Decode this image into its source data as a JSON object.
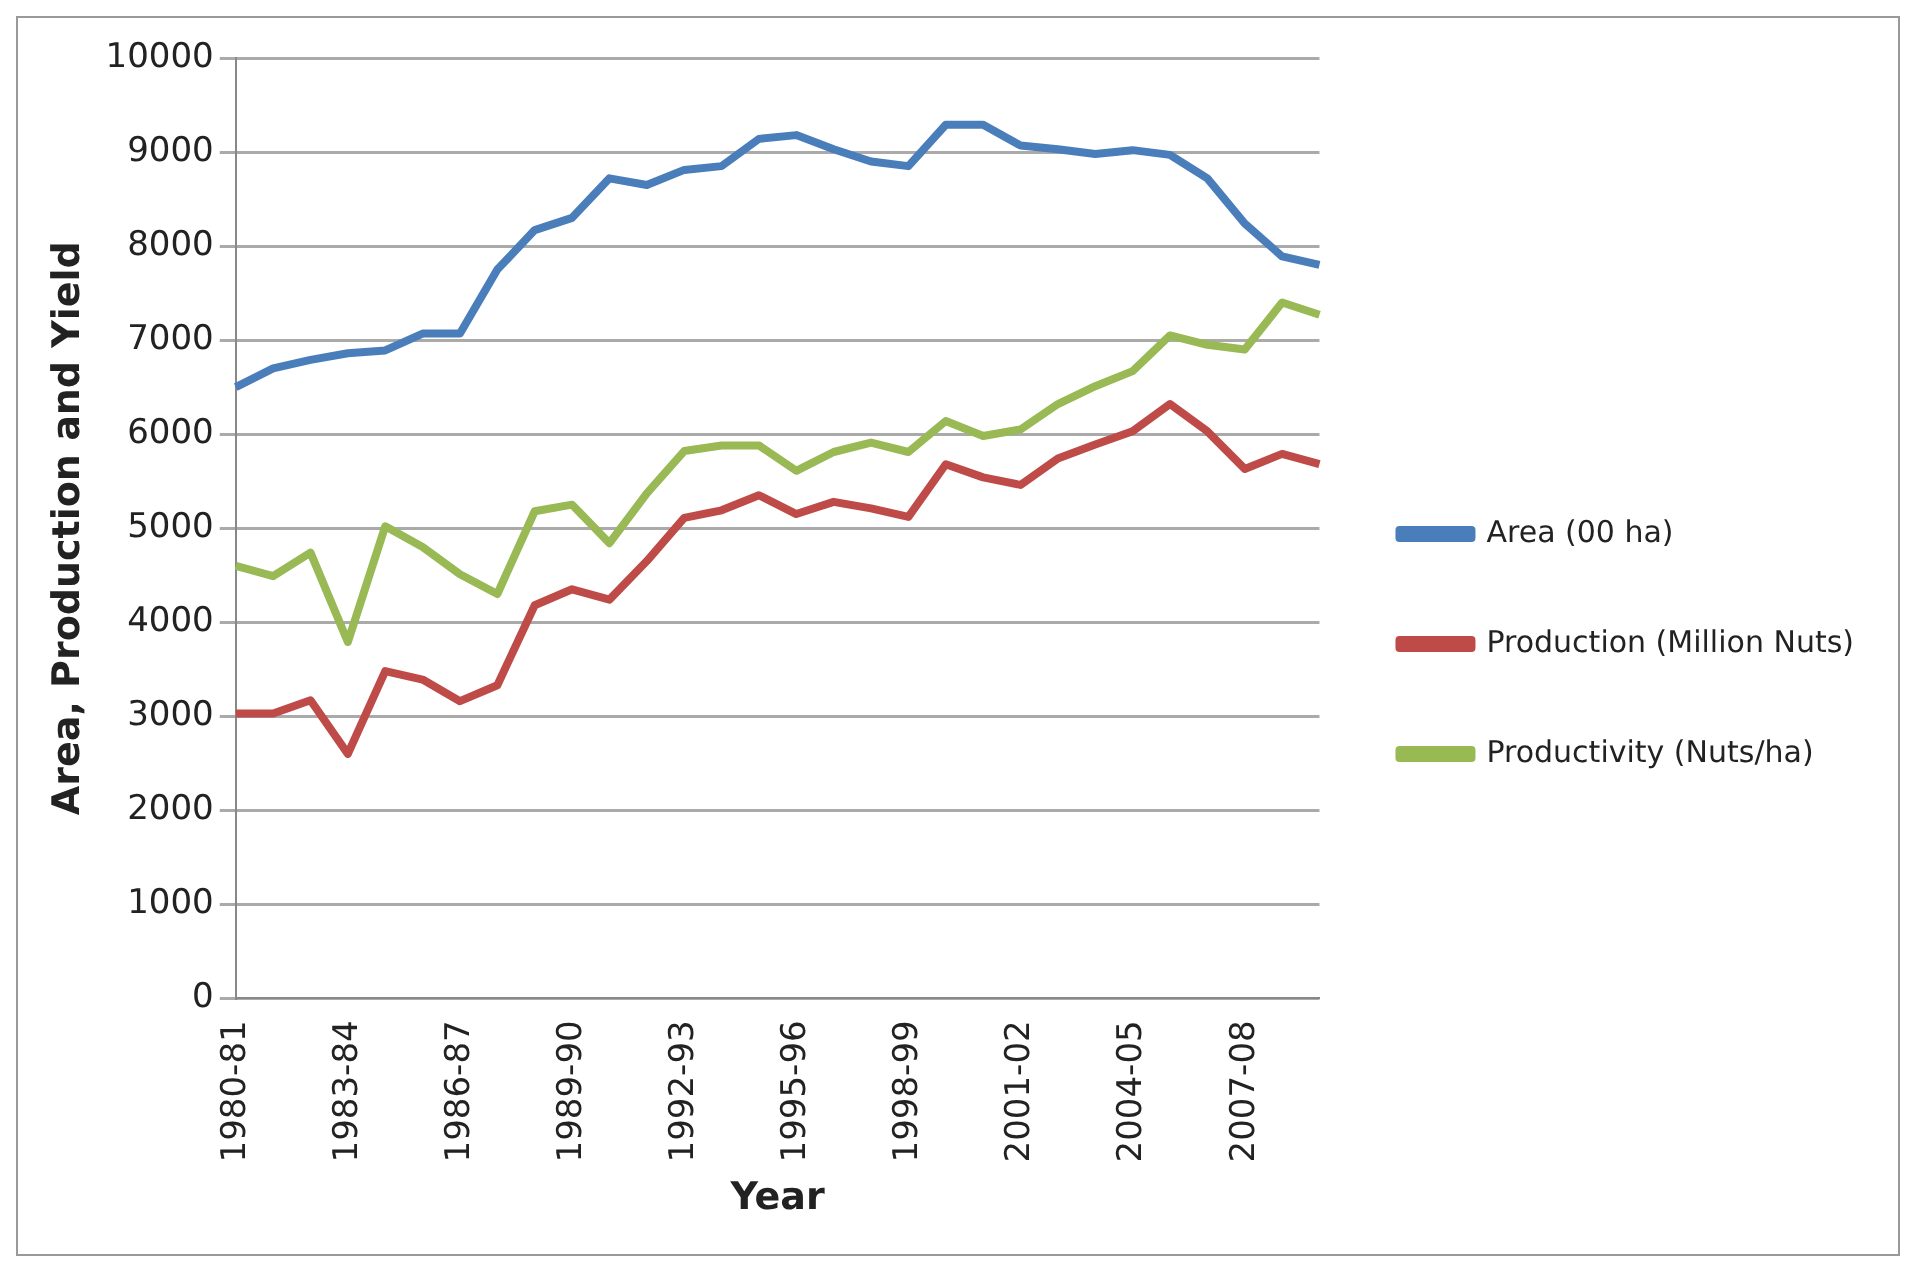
{
  "chart_data": {
    "type": "line",
    "xlabel": "Year",
    "ylabel": "Area, Production and Yield",
    "categories": [
      "1980-81",
      null,
      null,
      "1983-84",
      null,
      null,
      "1986-87",
      null,
      null,
      "1989-90",
      null,
      null,
      "1992-93",
      null,
      null,
      "1995-96",
      null,
      null,
      "1998-99",
      null,
      null,
      "2001-02",
      null,
      null,
      "2004-05",
      null,
      null,
      "2007-08",
      null,
      null
    ],
    "series": [
      {
        "name": "Area (00 ha)",
        "color": "#4a7ebb",
        "values": [
          6500,
          6700,
          6790,
          6860,
          6890,
          7070,
          7070,
          7750,
          8170,
          8300,
          8720,
          8650,
          8810,
          8850,
          9140,
          9180,
          9030,
          8900,
          8850,
          9290,
          9290,
          9070,
          9030,
          8980,
          9020,
          8970,
          8720,
          8240,
          7890,
          7800
        ]
      },
      {
        "name": "Production (Million Nuts)",
        "color": "#be4b48",
        "values": [
          3030,
          3030,
          3170,
          2600,
          3480,
          3390,
          3160,
          3330,
          4180,
          4350,
          4240,
          4650,
          5110,
          5190,
          5350,
          5150,
          5280,
          5210,
          5120,
          5680,
          5540,
          5460,
          5740,
          5890,
          6030,
          6320,
          6030,
          5630,
          5790,
          5680
        ]
      },
      {
        "name": "Productivity (Nuts/ha)",
        "color": "#98b954",
        "values": [
          4600,
          4490,
          4740,
          3790,
          5020,
          4800,
          4510,
          4300,
          5180,
          5250,
          4840,
          5370,
          5820,
          5880,
          5880,
          5610,
          5810,
          5910,
          5810,
          6140,
          5980,
          6050,
          6320,
          6510,
          6670,
          7050,
          6950,
          6900,
          7400,
          7270
        ]
      }
    ],
    "ylim": [
      0,
      10000
    ],
    "yticks": [
      0,
      1000,
      2000,
      3000,
      4000,
      5000,
      6000,
      7000,
      8000,
      9000,
      10000
    ],
    "grid": "y",
    "legend": "right",
    "marker": "none",
    "line_style": "solid"
  }
}
